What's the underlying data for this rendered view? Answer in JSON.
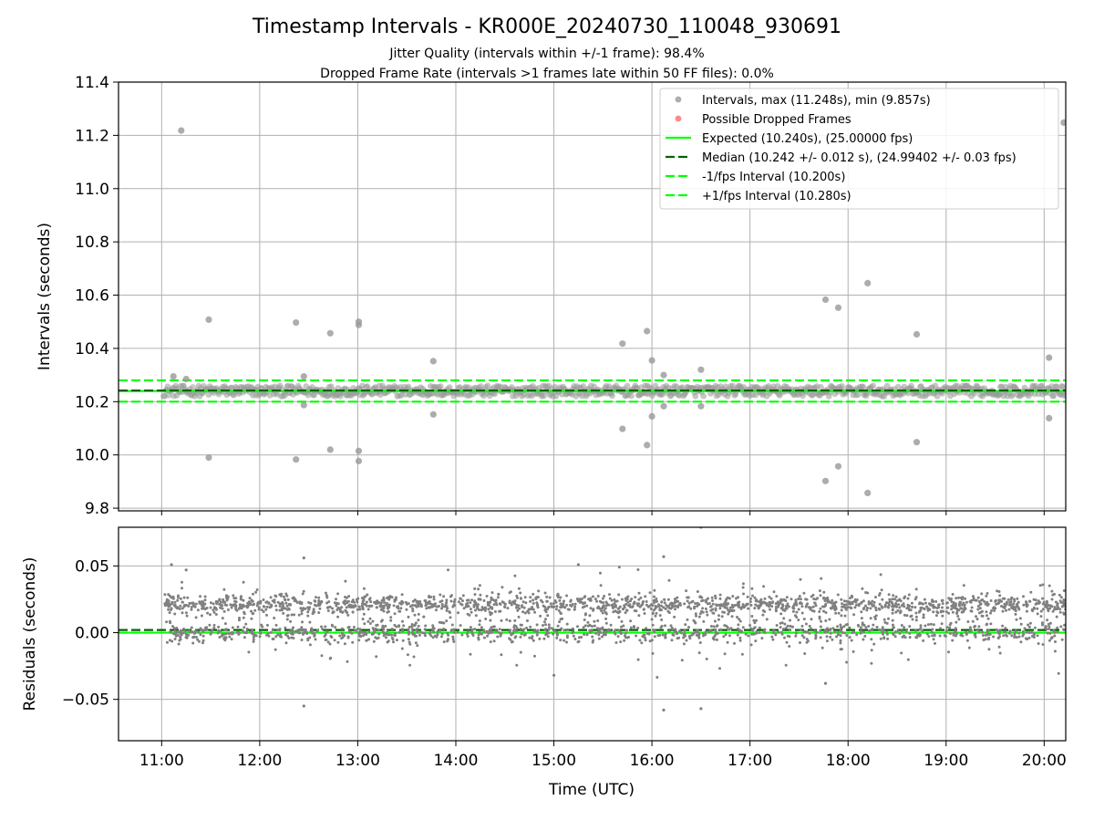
{
  "chart_data": {
    "title": "Timestamp Intervals - KR000E_20240730_110048_930691",
    "subtitle_lines": [
      "Jitter Quality (intervals within +/-1 frame): 98.4%",
      "Dropped Frame Rate (intervals >1 frames late within 50 FF files): 0.0%"
    ],
    "x_axis": {
      "label": "Time (UTC)",
      "range_hours": [
        10.56,
        20.22
      ],
      "ticks": [
        {
          "value": 11,
          "label": "11:00"
        },
        {
          "value": 12,
          "label": "12:00"
        },
        {
          "value": 13,
          "label": "13:00"
        },
        {
          "value": 14,
          "label": "14:00"
        },
        {
          "value": 15,
          "label": "15:00"
        },
        {
          "value": 16,
          "label": "16:00"
        },
        {
          "value": 17,
          "label": "17:00"
        },
        {
          "value": 18,
          "label": "18:00"
        },
        {
          "value": 19,
          "label": "19:00"
        },
        {
          "value": 20,
          "label": "20:00"
        }
      ],
      "grid": true
    },
    "top_panel": {
      "type": "scatter",
      "ylabel": "Intervals (seconds)",
      "ylim": [
        9.79,
        11.4
      ],
      "yticks": [
        {
          "value": 11.4,
          "label": "11.4"
        },
        {
          "value": 11.2,
          "label": "11.2"
        },
        {
          "value": 11.0,
          "label": "11.0"
        },
        {
          "value": 10.8,
          "label": "10.8"
        },
        {
          "value": 10.6,
          "label": "10.6"
        },
        {
          "value": 10.4,
          "label": "10.4"
        },
        {
          "value": 10.2,
          "label": "10.2"
        },
        {
          "value": 10.0,
          "label": "10.0"
        },
        {
          "value": 9.8,
          "label": "9.8"
        }
      ],
      "grid": true,
      "legend_position": "top-right",
      "legend": [
        {
          "label": "Intervals, max (11.248s), min (9.857s)",
          "kind": "marker",
          "color": "#999999"
        },
        {
          "label": "Possible Dropped Frames",
          "kind": "marker",
          "color": "#ff6b6b"
        },
        {
          "label": "Expected (10.240s), (25.00000 fps)",
          "kind": "solid",
          "color": "#00ff00"
        },
        {
          "label": "Median (10.242 +/- 0.012 s), (24.99402 +/- 0.03 fps)",
          "kind": "dashed",
          "color": "#006400"
        },
        {
          "label": "-1/fps Interval (10.200s)",
          "kind": "dashed",
          "color": "#00ff00"
        },
        {
          "label": "+1/fps Interval (10.280s)",
          "kind": "dashed",
          "color": "#00ff00"
        }
      ],
      "reference_lines": [
        {
          "name": "expected",
          "y": 10.24,
          "style": "solid",
          "color": "#00ff00"
        },
        {
          "name": "median",
          "y": 10.242,
          "style": "dashed",
          "color": "#006400"
        },
        {
          "name": "minus-one-frame",
          "y": 10.2,
          "style": "dashed",
          "color": "#00ff00"
        },
        {
          "name": "plus-one-frame",
          "y": 10.28,
          "style": "dashed",
          "color": "#00ff00"
        }
      ],
      "band": {
        "y_center": 10.24,
        "y_halfwidth": 0.02,
        "x_start": 11.02,
        "x_end": 20.22,
        "color": "#999999"
      },
      "outliers": [
        {
          "x": 11.2,
          "y": 11.218
        },
        {
          "x": 11.12,
          "y": 10.295
        },
        {
          "x": 11.25,
          "y": 10.285
        },
        {
          "x": 11.48,
          "y": 10.508
        },
        {
          "x": 11.48,
          "y": 9.99
        },
        {
          "x": 12.37,
          "y": 10.497
        },
        {
          "x": 12.37,
          "y": 9.983
        },
        {
          "x": 12.45,
          "y": 10.295
        },
        {
          "x": 12.45,
          "y": 10.187
        },
        {
          "x": 12.72,
          "y": 10.457
        },
        {
          "x": 12.72,
          "y": 10.02
        },
        {
          "x": 13.01,
          "y": 10.5
        },
        {
          "x": 13.01,
          "y": 10.488
        },
        {
          "x": 13.01,
          "y": 10.015
        },
        {
          "x": 13.01,
          "y": 9.977
        },
        {
          "x": 13.77,
          "y": 10.352
        },
        {
          "x": 13.77,
          "y": 10.152
        },
        {
          "x": 15.7,
          "y": 10.418
        },
        {
          "x": 15.7,
          "y": 10.098
        },
        {
          "x": 15.95,
          "y": 10.465
        },
        {
          "x": 15.95,
          "y": 10.037
        },
        {
          "x": 16.0,
          "y": 10.355
        },
        {
          "x": 16.0,
          "y": 10.145
        },
        {
          "x": 16.12,
          "y": 10.3
        },
        {
          "x": 16.12,
          "y": 10.183
        },
        {
          "x": 16.5,
          "y": 10.32
        },
        {
          "x": 16.5,
          "y": 10.183
        },
        {
          "x": 17.77,
          "y": 10.583
        },
        {
          "x": 17.77,
          "y": 9.902
        },
        {
          "x": 17.9,
          "y": 10.553
        },
        {
          "x": 17.9,
          "y": 9.957
        },
        {
          "x": 18.2,
          "y": 10.645
        },
        {
          "x": 18.2,
          "y": 9.857
        },
        {
          "x": 18.7,
          "y": 10.453
        },
        {
          "x": 18.7,
          "y": 10.048
        },
        {
          "x": 20.05,
          "y": 10.365
        },
        {
          "x": 20.05,
          "y": 10.138
        },
        {
          "x": 20.2,
          "y": 11.248
        }
      ]
    },
    "bottom_panel": {
      "type": "scatter",
      "ylabel": "Residuals (seconds)",
      "ylim": [
        -0.081,
        0.079
      ],
      "yticks": [
        {
          "value": 0.05,
          "label": "0.05"
        },
        {
          "value": 0.0,
          "label": "0.00"
        },
        {
          "value": -0.05,
          "label": "−0.05"
        }
      ],
      "grid": true,
      "reference_lines": [
        {
          "name": "expected",
          "y": 0.0,
          "style": "solid",
          "color": "#00ff00"
        },
        {
          "name": "median",
          "y": 0.002,
          "style": "dashed",
          "color": "#006400"
        }
      ],
      "residual_bands": [
        {
          "y_center": 0.021,
          "spread": 0.0035,
          "share": 0.5
        },
        {
          "y_center": 0.0,
          "spread": 0.0035,
          "share": 0.3
        },
        {
          "y_center": 0.01,
          "spread": 0.014,
          "share": 0.2
        }
      ],
      "point_count": 2800,
      "outliers": [
        {
          "x": 11.1,
          "y": 0.051
        },
        {
          "x": 11.25,
          "y": 0.047
        },
        {
          "x": 12.45,
          "y": 0.056
        },
        {
          "x": 12.45,
          "y": -0.055
        },
        {
          "x": 15.25,
          "y": 0.051
        },
        {
          "x": 16.12,
          "y": 0.057
        },
        {
          "x": 16.12,
          "y": -0.058
        },
        {
          "x": 16.5,
          "y": -0.057
        },
        {
          "x": 16.5,
          "y": 0.079
        },
        {
          "x": 15.0,
          "y": -0.032
        },
        {
          "x": 17.77,
          "y": -0.038
        }
      ],
      "color": "#808080"
    }
  }
}
